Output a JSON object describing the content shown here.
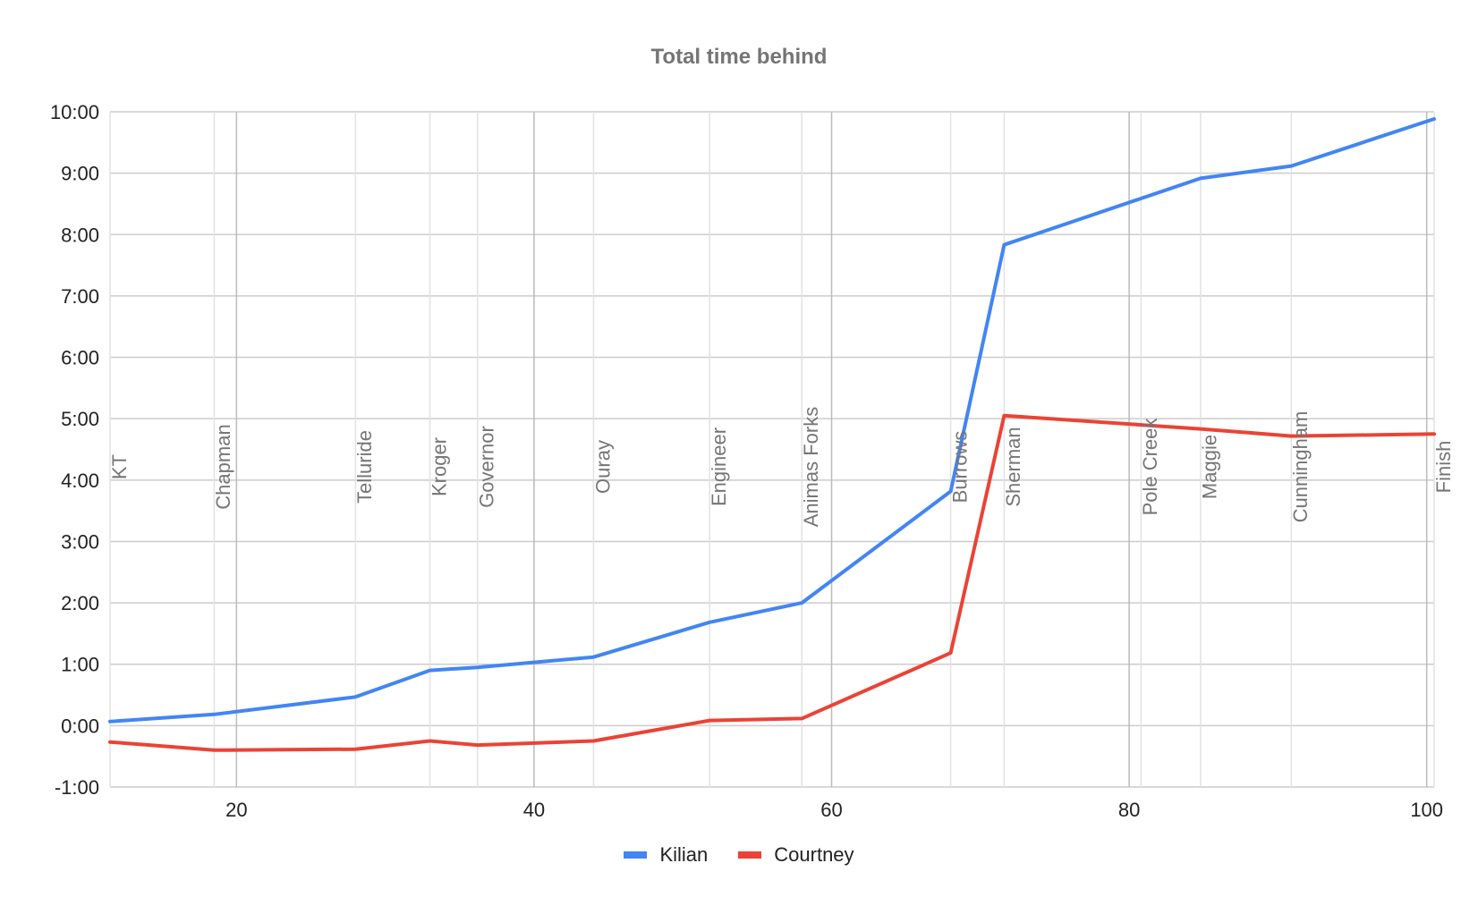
{
  "chart_data": {
    "type": "line",
    "title": "Total time behind",
    "xlabel": "",
    "ylabel": "",
    "xlim": [
      11.5,
      100.5
    ],
    "ylim": [
      -60,
      600
    ],
    "x_ticks": [
      20,
      40,
      60,
      80,
      100
    ],
    "y_ticks": [
      -60,
      0,
      60,
      120,
      180,
      240,
      300,
      360,
      420,
      480,
      540,
      600
    ],
    "y_tick_labels": [
      "-1:00",
      "0:00",
      "1:00",
      "2:00",
      "3:00",
      "4:00",
      "5:00",
      "6:00",
      "7:00",
      "8:00",
      "9:00",
      "10:00"
    ],
    "grid": true,
    "legend_position": "bottom",
    "x": [
      11.5,
      18.5,
      28,
      33,
      36.2,
      44,
      51.8,
      58,
      68,
      71.6,
      84.8,
      90.9,
      100.5
    ],
    "series": [
      {
        "name": "Kilian",
        "color": "#4285f4",
        "values": [
          4,
          11,
          28,
          54,
          57,
          67,
          101,
          120,
          229,
          470,
          535,
          547,
          593
        ]
      },
      {
        "name": "Courtney",
        "color": "#ea4335",
        "values": [
          -16,
          -24,
          -23,
          -15,
          -19,
          -15,
          5,
          7,
          71,
          303,
          290,
          283,
          285
        ]
      }
    ],
    "annotations": [
      {
        "x": 11.5,
        "label": "KT"
      },
      {
        "x": 18.5,
        "label": "Chapman"
      },
      {
        "x": 28,
        "label": "Telluride"
      },
      {
        "x": 33,
        "label": "Kroger"
      },
      {
        "x": 36.2,
        "label": "Governor"
      },
      {
        "x": 44,
        "label": "Ouray"
      },
      {
        "x": 51.8,
        "label": "Engineer"
      },
      {
        "x": 58,
        "label": "Animas Forks"
      },
      {
        "x": 68,
        "label": "Burrows"
      },
      {
        "x": 71.6,
        "label": "Sherman"
      },
      {
        "x": 80.8,
        "label": "Pole Creek"
      },
      {
        "x": 84.8,
        "label": "Maggie"
      },
      {
        "x": 90.9,
        "label": "Cunningham"
      },
      {
        "x": 100.5,
        "label": "Finish"
      }
    ]
  }
}
